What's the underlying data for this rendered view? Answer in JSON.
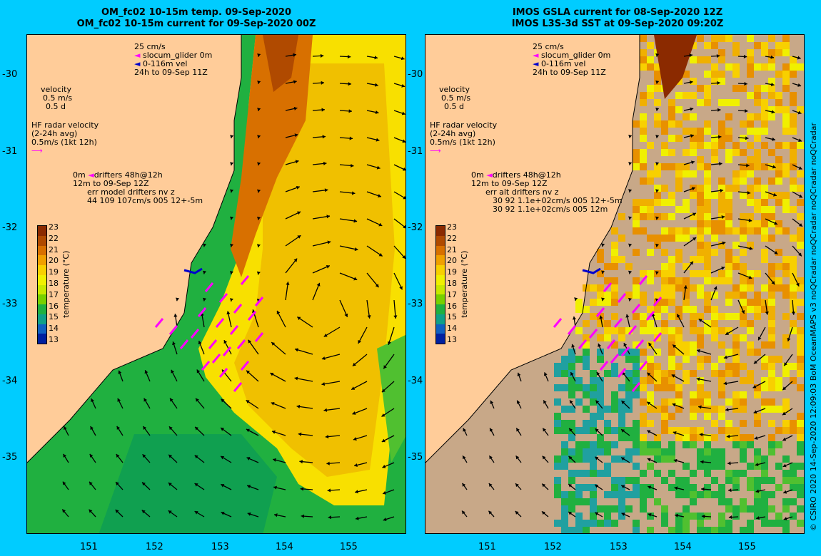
{
  "left": {
    "title_line1": "OM_fc02 10-15m temp. 09-Sep-2020",
    "title_line2": "OM_fc02 10-15m current for 09-Sep-2020 00Z",
    "legend_top": [
      "25 cm/s",
      "slocum_glider 0m",
      "0-116m vel",
      "24h to 09-Sep 11Z"
    ],
    "velocity": [
      "velocity",
      "0.5 m/s",
      "0.5 d"
    ],
    "hf_radar": [
      "HF radar velocity",
      "(2-24h avg)",
      "0.5m/s (1kt 12h)"
    ],
    "drifters": [
      "0m",
      "drifters 48h@12h",
      "12m",
      "to 09-Sep 12Z",
      "err model drifters nv z",
      "44 109 107cm/s 005 12+-5m"
    ]
  },
  "right": {
    "title_line1": "IMOS GSLA current for 08-Sep-2020 12Z",
    "title_line2": "IMOS L3S-3d SST at 09-Sep-2020 09:20Z",
    "legend_top": [
      "25 cm/s",
      "slocum_glider 0m",
      "0-116m vel",
      "24h to 09-Sep 11Z"
    ],
    "velocity": [
      "velocity",
      "0.5 m/s",
      "0.5 d"
    ],
    "hf_radar": [
      "HF radar velocity",
      "(2-24h avg)",
      "0.5m/s (1kt 12h)"
    ],
    "drifters": [
      "0m",
      "drifters 48h@12h",
      "12m",
      "to 09-Sep 12Z",
      "err alt drifters nv z",
      "30 92 1.1e+02cm/s 005 12+-5m",
      "30 92 1.1e+02cm/s 005 12m"
    ]
  },
  "axes": {
    "lat_labels": [
      "-30",
      "-31",
      "-32",
      "-33",
      "-34",
      "-35"
    ],
    "lon_labels": [
      "151",
      "152",
      "153",
      "154",
      "155"
    ]
  },
  "colorbar": {
    "title": "temperature (°C)",
    "ticks": [
      "23",
      "22",
      "21",
      "20",
      "19",
      "18",
      "17",
      "16",
      "15",
      "14",
      "13"
    ],
    "colors": [
      "#8b2a00",
      "#b04a00",
      "#d87000",
      "#f0a000",
      "#f8d000",
      "#f0f000",
      "#c8e800",
      "#78d000",
      "#20b040",
      "#10a088",
      "#1060c0",
      "#0020a0"
    ]
  },
  "colors": {
    "background": "#00ccff",
    "land": "#ffcc99",
    "nodata": "#c8a888",
    "arrow": "#000000",
    "glider": "#0000cc",
    "radar": "#ff00ff"
  },
  "credit": "© CSIRO 2020   14-Sep-2020 12:09:03 BoM OceanMAPS v3 noQCradar noQCradar noQCradar noQCradar"
}
